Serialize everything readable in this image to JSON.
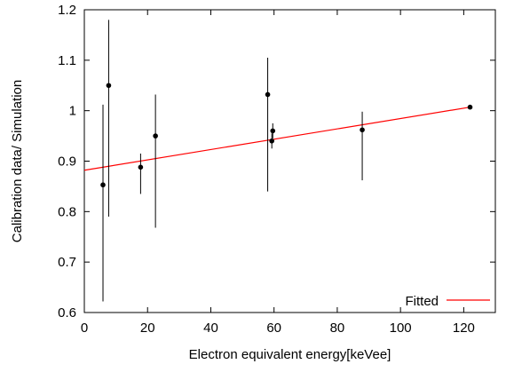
{
  "chart_data": {
    "type": "scatter",
    "title": "",
    "xlabel": "Electron equivalent energy[keVee]",
    "ylabel": "Calibration data/ Simulation",
    "xlim": [
      0,
      130
    ],
    "ylim": [
      0.6,
      1.2
    ],
    "xticks": [
      "0",
      "20",
      "40",
      "60",
      "80",
      "100",
      "120"
    ],
    "yticks": [
      "0.6",
      "0.7",
      "0.8",
      "0.9",
      "1",
      "1.1",
      "1.2"
    ],
    "grid": false,
    "legend_position": "bottom-right",
    "series": [
      {
        "type": "errorbar",
        "color": "#000000",
        "points": [
          {
            "x": 5.9,
            "y": 0.853,
            "low": 0.622,
            "high": 1.012
          },
          {
            "x": 7.7,
            "y": 1.05,
            "low": 0.79,
            "high": 1.18
          },
          {
            "x": 17.8,
            "y": 0.888,
            "low": 0.835,
            "high": 0.915
          },
          {
            "x": 22.5,
            "y": 0.95,
            "low": 0.768,
            "high": 1.032
          },
          {
            "x": 58.0,
            "y": 1.032,
            "low": 0.84,
            "high": 1.105
          },
          {
            "x": 59.3,
            "y": 0.94,
            "low": 0.925,
            "high": 0.955
          },
          {
            "x": 59.6,
            "y": 0.96,
            "low": 0.945,
            "high": 0.975
          },
          {
            "x": 87.9,
            "y": 0.962,
            "low": 0.862,
            "high": 0.998
          },
          {
            "x": 122.0,
            "y": 1.007,
            "low": 1.004,
            "high": 1.01
          }
        ]
      },
      {
        "name": "Fitted",
        "type": "line",
        "color": "#ff0000",
        "x": [
          0,
          122
        ],
        "values": [
          0.882,
          1.007
        ]
      }
    ]
  }
}
